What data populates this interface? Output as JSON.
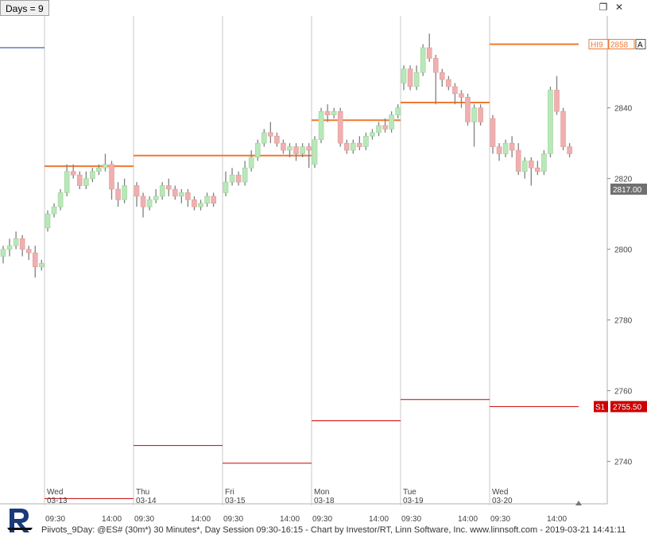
{
  "header": {
    "days_label": "Days = 9"
  },
  "window_icons": [
    "restore-icon",
    "close-icon"
  ],
  "footer": {
    "text": "Piivots_9Day: @ES# (30m*) 30 Minutes*, Day Session 09:30-16:15 - Chart by Investor/RT, Linn Software, Inc. www.linnsoft.com - 2019-03-21 14:41:11"
  },
  "colors": {
    "up_candle": "#b8e8b8",
    "down_candle": "#f0b0b0",
    "wick": "#808080",
    "hi_line": "#f07830",
    "s1_line": "#cc0000",
    "price_tag": "#707070",
    "separator": "#c8c8c8"
  },
  "chart_data": {
    "type": "candlestick",
    "ylim": [
      2728,
      2866
    ],
    "y_ticks": [
      2740,
      2760,
      2780,
      2800,
      2820,
      2840
    ],
    "last_price_label": "2817.00",
    "last_price": 2817,
    "hi_label": {
      "tag": "HI9",
      "value": "2858",
      "extra": "A"
    },
    "s1_label": {
      "tag": "S1",
      "value": "2755.50"
    },
    "days": [
      {
        "dow": "Wed",
        "date": "03-13",
        "times": [
          "09:30",
          "14:00"
        ],
        "hi": 2823.5,
        "s1": 2729.5
      },
      {
        "dow": "Thu",
        "date": "03-14",
        "times": [
          "09:30",
          "14:00"
        ],
        "hi": 2826.5,
        "s1": 2744.5
      },
      {
        "dow": "Fri",
        "date": "03-15",
        "times": [
          "09:30",
          "14:00"
        ],
        "hi": 2826.5,
        "s1": 2739.5
      },
      {
        "dow": "Mon",
        "date": "03-18",
        "times": [
          "09:30",
          "14:00"
        ],
        "hi": 2836.5,
        "s1": 2751.5
      },
      {
        "dow": "Tue",
        "date": "03-19",
        "times": [
          "09:30",
          "14:00"
        ],
        "hi": 2841.5,
        "s1": 2757.5
      },
      {
        "dow": "Wed",
        "date": "03-20",
        "times": [
          "09:30",
          "14:00"
        ],
        "hi": 2858,
        "s1": 2755.5
      }
    ],
    "prev_day": {
      "hi": 2857,
      "candles": [
        [
          2798,
          2800,
          2796,
          2801
        ],
        [
          2800,
          2801,
          2798,
          2803
        ],
        [
          2801,
          2803,
          2800,
          2805
        ],
        [
          2803,
          2800,
          2798,
          2804
        ],
        [
          2800,
          2799,
          2797,
          2801
        ],
        [
          2799,
          2795,
          2792,
          2801
        ],
        [
          2795,
          2796,
          2794,
          2797
        ]
      ]
    },
    "candles": [
      [
        [
          2806,
          2810,
          2805,
          2811
        ],
        [
          2810,
          2812,
          2809,
          2813
        ],
        [
          2812,
          2816,
          2811,
          2817
        ],
        [
          2816,
          2822,
          2815,
          2824
        ],
        [
          2822,
          2821,
          2820,
          2824
        ],
        [
          2821,
          2818,
          2817,
          2822
        ],
        [
          2818,
          2820,
          2817,
          2822
        ],
        [
          2820,
          2822,
          2819,
          2823
        ],
        [
          2822,
          2823,
          2821,
          2824
        ],
        [
          2823,
          2824,
          2822,
          2827
        ],
        [
          2824,
          2817,
          2814,
          2825
        ],
        [
          2817,
          2814,
          2812,
          2819
        ],
        [
          2814,
          2818,
          2813,
          2820
        ]
      ],
      [
        [
          2818,
          2815,
          2812,
          2819
        ],
        [
          2815,
          2812,
          2809,
          2816
        ],
        [
          2812,
          2814,
          2811,
          2815
        ],
        [
          2814,
          2815,
          2813,
          2817
        ],
        [
          2815,
          2818,
          2814,
          2819
        ],
        [
          2818,
          2817,
          2815,
          2820
        ],
        [
          2817,
          2815,
          2814,
          2818
        ],
        [
          2815,
          2816,
          2813,
          2817
        ],
        [
          2816,
          2814,
          2812,
          2817
        ],
        [
          2814,
          2812,
          2811,
          2815
        ],
        [
          2812,
          2813,
          2811,
          2814
        ],
        [
          2813,
          2815,
          2812,
          2816
        ],
        [
          2815,
          2813,
          2812,
          2816
        ]
      ],
      [
        [
          2816,
          2819,
          2815,
          2822
        ],
        [
          2819,
          2821,
          2818,
          2823
        ],
        [
          2821,
          2819,
          2818,
          2822
        ],
        [
          2819,
          2823,
          2818,
          2825
        ],
        [
          2823,
          2826,
          2822,
          2828
        ],
        [
          2826,
          2830,
          2825,
          2831
        ],
        [
          2830,
          2833,
          2829,
          2834
        ],
        [
          2833,
          2832,
          2830,
          2836
        ],
        [
          2832,
          2830,
          2829,
          2833
        ],
        [
          2830,
          2828,
          2827,
          2831
        ],
        [
          2828,
          2829,
          2826,
          2830
        ],
        [
          2829,
          2827,
          2825,
          2830
        ],
        [
          2827,
          2829,
          2826,
          2830
        ],
        [
          2829,
          2828,
          2823,
          2830
        ]
      ],
      [
        [
          2824,
          2831,
          2823,
          2832
        ],
        [
          2831,
          2839,
          2830,
          2840
        ],
        [
          2839,
          2838,
          2836,
          2841
        ],
        [
          2838,
          2839,
          2837,
          2840
        ],
        [
          2839,
          2830,
          2829,
          2840
        ],
        [
          2830,
          2828,
          2827,
          2831
        ],
        [
          2828,
          2830,
          2827,
          2831
        ],
        [
          2830,
          2829,
          2828,
          2832
        ],
        [
          2829,
          2832,
          2828,
          2833
        ],
        [
          2832,
          2833,
          2831,
          2834
        ],
        [
          2833,
          2835,
          2832,
          2836
        ],
        [
          2835,
          2834,
          2833,
          2837
        ],
        [
          2834,
          2838,
          2833,
          2839
        ],
        [
          2838,
          2840,
          2837,
          2841
        ]
      ],
      [
        [
          2847,
          2851,
          2845,
          2852
        ],
        [
          2851,
          2846,
          2845,
          2852
        ],
        [
          2846,
          2850,
          2845,
          2852
        ],
        [
          2850,
          2857,
          2849,
          2858
        ],
        [
          2857,
          2854,
          2853,
          2861
        ],
        [
          2854,
          2850,
          2841,
          2855
        ],
        [
          2850,
          2848,
          2846,
          2851
        ],
        [
          2848,
          2846,
          2845,
          2849
        ],
        [
          2846,
          2844,
          2841,
          2847
        ],
        [
          2844,
          2843,
          2840,
          2845
        ],
        [
          2843,
          2836,
          2835,
          2844
        ],
        [
          2836,
          2840,
          2829,
          2841
        ],
        [
          2840,
          2836,
          2835,
          2841
        ]
      ],
      [
        [
          2837,
          2829,
          2827,
          2838
        ],
        [
          2829,
          2827,
          2825,
          2830
        ],
        [
          2827,
          2830,
          2826,
          2831
        ],
        [
          2830,
          2828,
          2826,
          2832
        ],
        [
          2828,
          2822,
          2821,
          2830
        ],
        [
          2822,
          2825,
          2820,
          2826
        ],
        [
          2825,
          2823,
          2818,
          2826
        ],
        [
          2823,
          2822,
          2821,
          2825
        ],
        [
          2822,
          2827,
          2821,
          2828
        ],
        [
          2827,
          2845,
          2826,
          2846
        ],
        [
          2845,
          2839,
          2838,
          2849
        ],
        [
          2839,
          2829,
          2828,
          2840
        ],
        [
          2829,
          2827,
          2826,
          2830
        ]
      ]
    ]
  }
}
